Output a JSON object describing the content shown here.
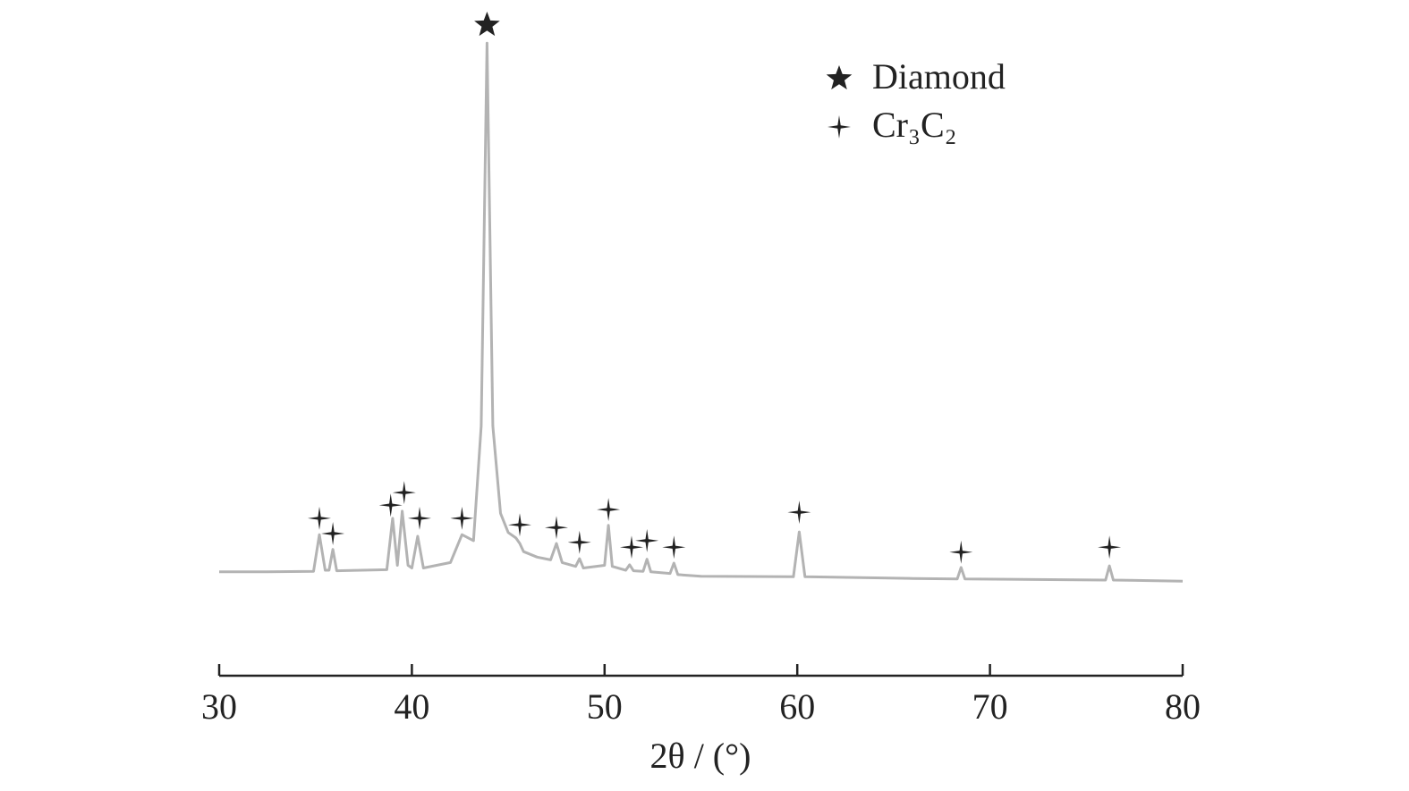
{
  "chart_data": {
    "type": "line",
    "xlabel": "2θ / (°)",
    "x": [
      30,
      32.5,
      34.9,
      35.2,
      35.5,
      35.7,
      35.9,
      36.1,
      38.7,
      39.0,
      39.25,
      39.5,
      39.8,
      40.0,
      40.3,
      40.6,
      42.0,
      42.6,
      43.2,
      43.6,
      43.9,
      44.2,
      44.6,
      45.0,
      45.4,
      45.6,
      45.8,
      46.5,
      47.2,
      47.5,
      47.8,
      48.5,
      48.7,
      48.9,
      50.0,
      50.2,
      50.4,
      51.1,
      51.3,
      51.5,
      52.0,
      52.2,
      52.4,
      53.4,
      53.6,
      53.8,
      55,
      59.8,
      60.1,
      60.4,
      66,
      68.3,
      68.5,
      68.7,
      76.0,
      76.2,
      76.4,
      80
    ],
    "values": [
      3.3,
      3.3,
      3.4,
      10.1,
      3.6,
      3.6,
      7.4,
      3.5,
      3.7,
      13.1,
      4.5,
      14.4,
      4.5,
      4.0,
      9.8,
      4.0,
      5.0,
      10.1,
      9.0,
      30,
      100,
      30,
      14,
      10.5,
      9.5,
      8.5,
      7.0,
      6.0,
      5.5,
      8.5,
      5.0,
      4.3,
      5.7,
      4.0,
      4.5,
      11.8,
      4.3,
      3.6,
      4.6,
      3.5,
      3.4,
      5.6,
      3.3,
      3.0,
      4.9,
      2.8,
      2.5,
      2.4,
      10.6,
      2.4,
      2.1,
      2.0,
      4.1,
      2.0,
      1.8,
      4.4,
      1.8,
      1.6
    ],
    "color": "#b3b3b3",
    "markers": [
      {
        "name": "Diamond",
        "symbol": "star",
        "color": "#222222",
        "x": [
          43.9
        ],
        "values": [
          103.3
        ]
      },
      {
        "name": "Cr₃C₂",
        "symbol": "cross",
        "color": "#222222",
        "x": [
          35.2,
          35.9,
          38.9,
          39.6,
          40.4,
          42.6,
          45.6,
          47.5,
          48.7,
          50.2,
          51.4,
          52.2,
          53.6,
          60.1,
          68.5,
          76.2
        ],
        "values": [
          13.1,
          10.3,
          15.5,
          17.8,
          13.1,
          13.1,
          11.9,
          11.4,
          8.7,
          14.7,
          7.8,
          9.0,
          7.8,
          14.2,
          6.9,
          7.8
        ]
      }
    ],
    "xlim": [
      30,
      80
    ],
    "ylim": [
      0,
      110
    ],
    "xticks": [
      30,
      40,
      50,
      60,
      70,
      80
    ]
  }
}
